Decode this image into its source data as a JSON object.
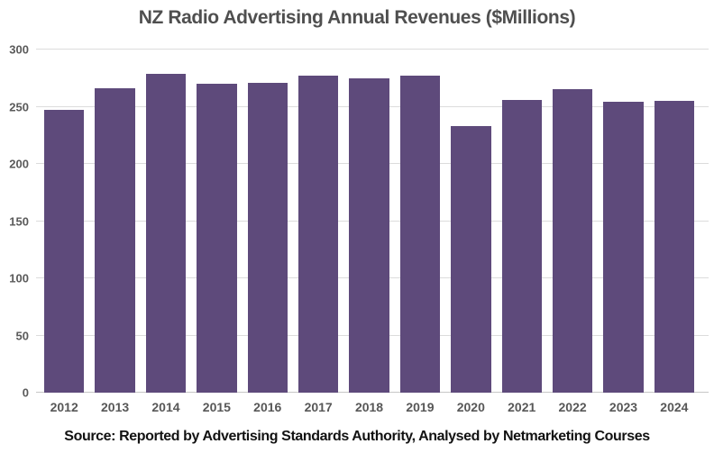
{
  "title": "NZ Radio Advertising Annual Revenues ($Millions)",
  "source": "Source: Reported by Advertising Standards Authority, Analysed by Netmarketing Courses",
  "chart_data": {
    "type": "bar",
    "title": "NZ Radio Advertising Annual Revenues ($Millions)",
    "categories": [
      "2012",
      "2013",
      "2014",
      "2015",
      "2016",
      "2017",
      "2018",
      "2019",
      "2020",
      "2021",
      "2022",
      "2023",
      "2024"
    ],
    "values": [
      247,
      266,
      279,
      270,
      271,
      277,
      275,
      277,
      233,
      256,
      265,
      254,
      255
    ],
    "xlabel": "",
    "ylabel": "",
    "ylim": [
      0,
      300
    ],
    "y_ticks": [
      0,
      50,
      100,
      150,
      200,
      250,
      300
    ],
    "grid": true,
    "legend": false,
    "annotation": "Source: Reported by Advertising Standards Authority, Analysed by Netmarketing Courses",
    "colors": {
      "bar": "#5E4A7B",
      "gridline": "#DCDCDC",
      "axis_line": "#C6C6C6",
      "tick_label": "#5A5A5A",
      "title": "#4F4F4F",
      "source_text": "#121212",
      "background": "#FFFFFF"
    }
  }
}
